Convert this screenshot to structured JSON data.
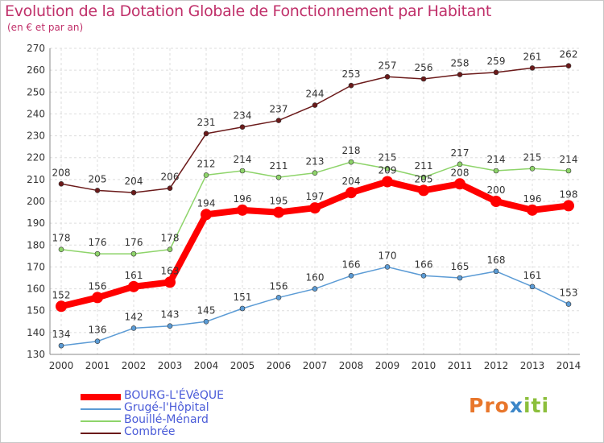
{
  "chart_data": {
    "type": "line",
    "title": "Evolution de la Dotation Globale de Fonctionnement par Habitant",
    "subtitle": "(en € et par an)",
    "x": [
      "2000",
      "2001",
      "2002",
      "2003",
      "2004",
      "2005",
      "2006",
      "2007",
      "2008",
      "2009",
      "2010",
      "2011",
      "2012",
      "2013",
      "2014"
    ],
    "ylim": [
      130,
      270
    ],
    "yticks": [
      130,
      140,
      150,
      160,
      170,
      180,
      190,
      200,
      210,
      220,
      230,
      240,
      250,
      260,
      270
    ],
    "grid": true,
    "legend_position": "bottom-left",
    "series": [
      {
        "name": "BOURG-L'ÉVêQUE",
        "color": "#ff0000",
        "bold": true,
        "values": [
          152,
          156,
          161,
          163,
          194,
          196,
          195,
          197,
          204,
          209,
          205,
          208,
          200,
          196,
          198
        ]
      },
      {
        "name": "Grugé-l'Hôpital",
        "color": "#5b9bd5",
        "values": [
          134,
          136,
          142,
          143,
          145,
          151,
          156,
          160,
          166,
          170,
          166,
          165,
          168,
          161,
          153
        ]
      },
      {
        "name": "Bouillé-Ménard",
        "color": "#8ed46a",
        "values": [
          178,
          176,
          176,
          178,
          212,
          214,
          211,
          213,
          218,
          215,
          211,
          217,
          214,
          215,
          214
        ]
      },
      {
        "name": "Combrée",
        "color": "#6b1a1a",
        "values": [
          208,
          205,
          204,
          206,
          231,
          234,
          237,
          244,
          253,
          257,
          256,
          258,
          259,
          261,
          262
        ]
      }
    ]
  },
  "logo": {
    "part1": "Pro",
    "part2": "x",
    "part3": "iti"
  }
}
